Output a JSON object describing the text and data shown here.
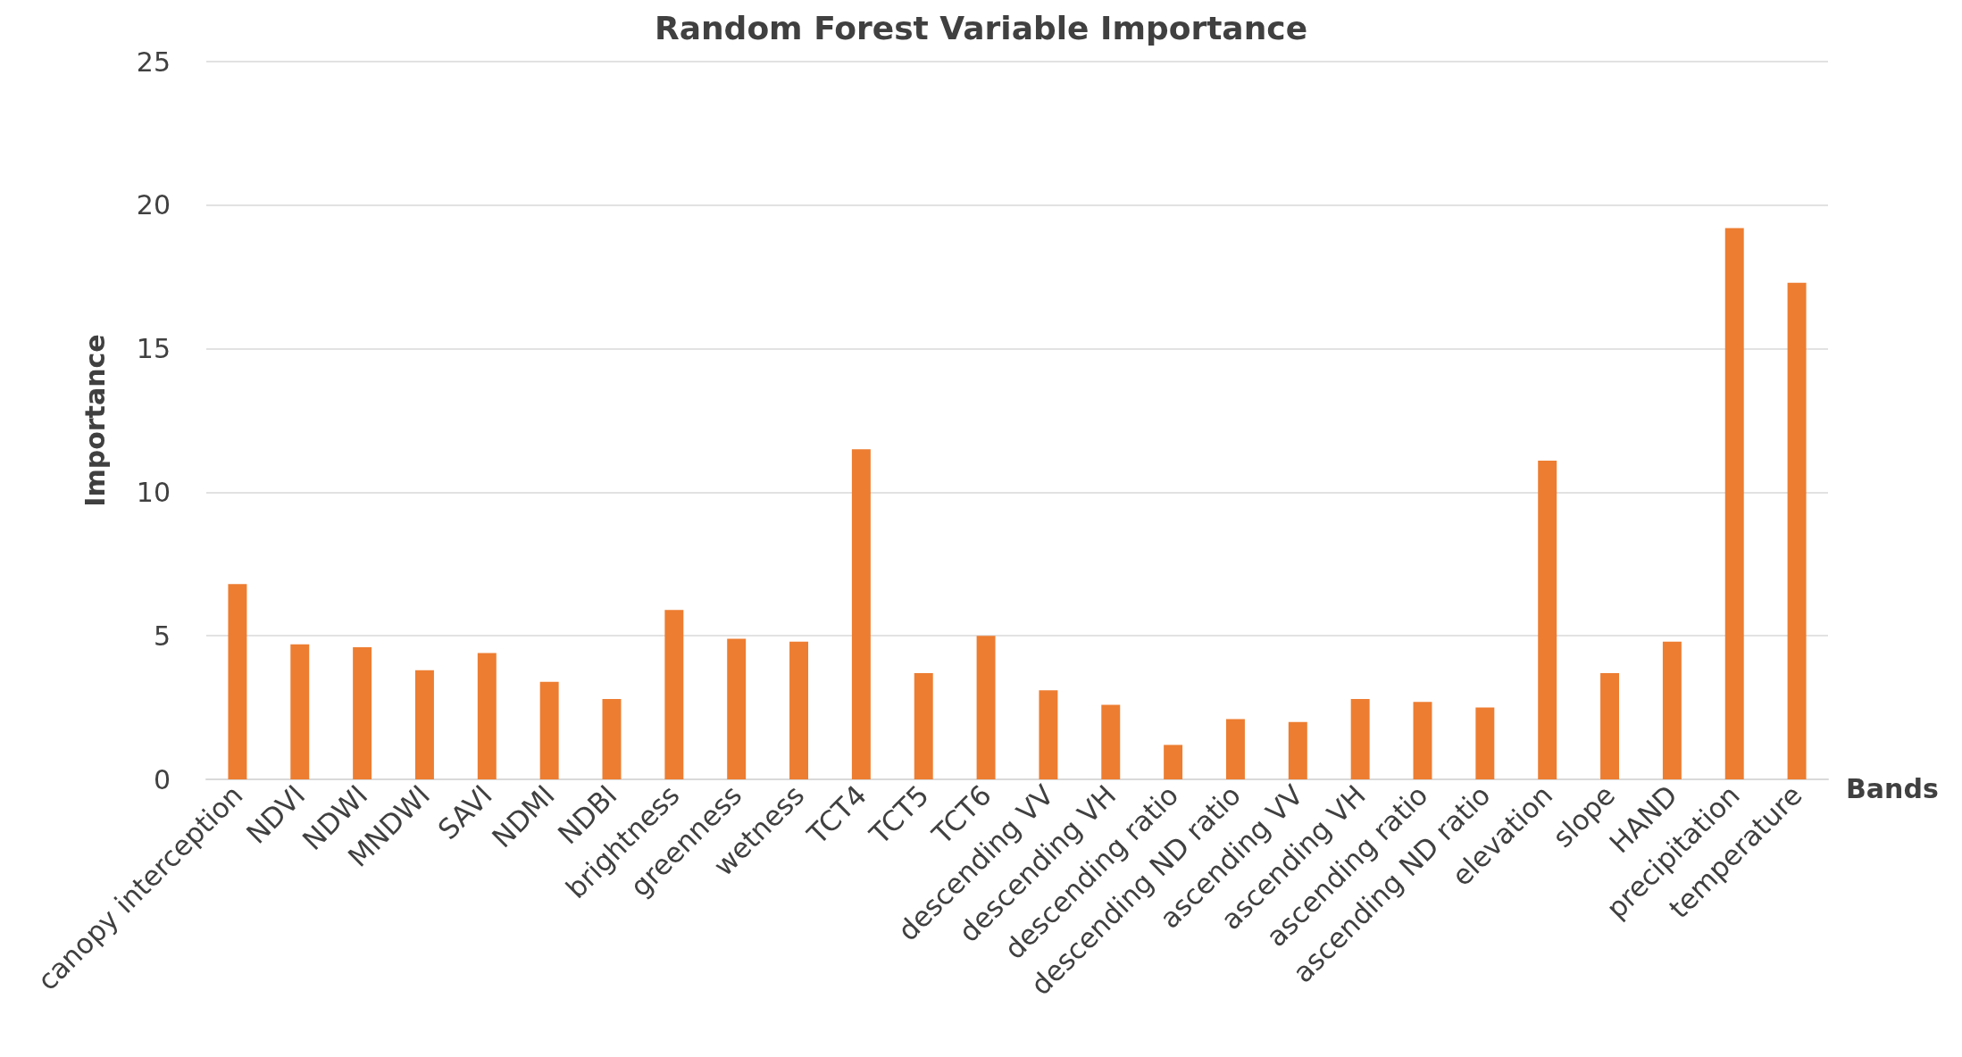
{
  "chart_data": {
    "type": "bar",
    "title": "Random Forest Variable Importance",
    "xlabel": "Bands",
    "ylabel": "Importance",
    "categories": [
      "canopy interception",
      "NDVI",
      "NDWI",
      "MNDWI",
      "SAVI",
      "NDMI",
      "NDBI",
      "brightness",
      "greenness",
      "wetness",
      "TCT4",
      "TCT5",
      "TCT6",
      "descending VV",
      "descending VH",
      "descending ratio",
      "descending ND ratio",
      "ascending VV",
      "ascending VH",
      "ascending ratio",
      "ascending ND ratio",
      "elevation",
      "slope",
      "HAND",
      "precipitation",
      "temperature"
    ],
    "values": [
      6.8,
      4.7,
      4.6,
      3.8,
      4.4,
      3.4,
      2.8,
      5.9,
      4.9,
      4.8,
      11.5,
      3.7,
      5.0,
      3.1,
      2.6,
      1.2,
      2.1,
      2.0,
      2.8,
      2.7,
      2.5,
      11.1,
      3.7,
      4.8,
      19.2,
      17.3
    ],
    "color": "#ed7d31",
    "ylim": [
      0,
      25
    ],
    "yticks": [
      0,
      5,
      10,
      15,
      20,
      25
    ],
    "grid": "y"
  }
}
